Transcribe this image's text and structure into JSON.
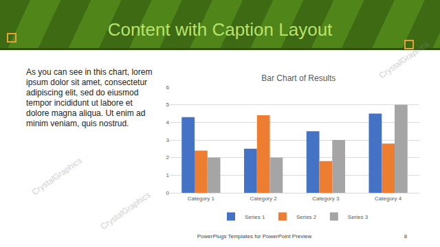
{
  "slide": {
    "title": "Content with Caption Layout",
    "body": "As you can see in this chart, lorem ipsum dolor sit amet, consectetur adipiscing elit, sed do eiusmod tempor incididunt ut labore et dolore magna aliqua. Ut enim ad minim veniam, quis nostrud.",
    "footer": "PowerPlugs Templates for PowerPoint Preview",
    "page": "8",
    "watermark": "CrystalGraphics"
  },
  "chart_data": {
    "type": "bar",
    "title": "Bar Chart of Results",
    "categories": [
      "Category 1",
      "Category 2",
      "Category 3",
      "Category 4"
    ],
    "series": [
      {
        "name": "Series 1",
        "color": "#4472c4",
        "values": [
          4.3,
          2.5,
          3.5,
          4.5
        ]
      },
      {
        "name": "Series 2",
        "color": "#ed7d31",
        "values": [
          2.4,
          4.4,
          1.8,
          2.8
        ]
      },
      {
        "name": "Series 3",
        "color": "#a5a5a5",
        "values": [
          2,
          2,
          3,
          5
        ]
      }
    ],
    "ylim": [
      0,
      6
    ],
    "yticks": [
      0,
      1,
      2,
      3,
      4,
      5,
      6
    ],
    "grid": true,
    "legend": "bottom"
  }
}
